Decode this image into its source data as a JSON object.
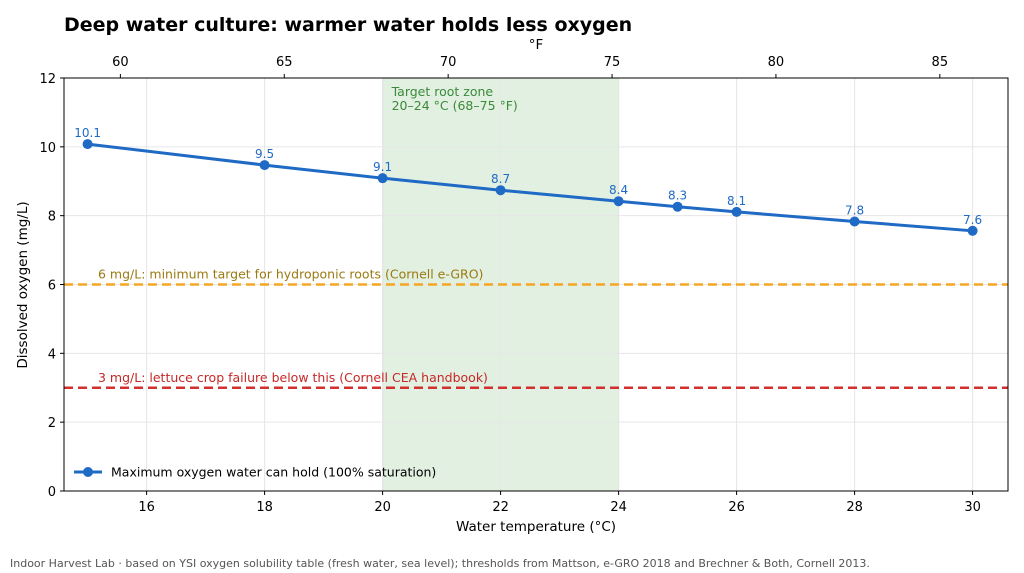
{
  "chart_data": {
    "type": "line",
    "title": "Deep water culture: warmer water holds less oxygen",
    "xlabel": "Water temperature (°C)",
    "ylabel": "Dissolved oxygen (mg/L)",
    "secondary_xlabel": "°F",
    "xlim": [
      14.6,
      30.6
    ],
    "ylim": [
      0,
      12
    ],
    "x_ticks": [
      "16",
      "18",
      "20",
      "22",
      "24",
      "26",
      "28",
      "30"
    ],
    "y_ticks": [
      "0",
      "2",
      "4",
      "6",
      "8",
      "10",
      "12"
    ],
    "secondary_x_ticks": [
      "60",
      "65",
      "70",
      "75",
      "80",
      "85"
    ],
    "grid": true,
    "legend_placement": "lower-left",
    "series": [
      {
        "name": "Maximum oxygen water can hold (100% saturation)",
        "color": "#1f6ac4",
        "x": [
          15,
          18,
          20,
          22,
          24,
          25,
          26,
          28,
          30
        ],
        "values": [
          10.08,
          9.47,
          9.09,
          8.74,
          8.42,
          8.26,
          8.11,
          7.83,
          7.56
        ],
        "labels": [
          "10.1",
          "9.5",
          "9.1",
          "8.7",
          "8.4",
          "8.3",
          "8.1",
          "7.8",
          "7.6"
        ]
      }
    ],
    "shaded_region": {
      "x_range": [
        20,
        24
      ],
      "color": "#e2f0e1",
      "label_line1": "Target root zone",
      "label_line2": "20–24 °C (68–75 °F)",
      "label_color": "#3a8a3a"
    },
    "reference_lines": [
      {
        "y": 6,
        "color": "#f5a623",
        "label": "6 mg/L: minimum target for hydroponic roots (Cornell e-GRO)",
        "label_color": "#9a7a12"
      },
      {
        "y": 3,
        "color": "#d32f2f",
        "label": "3 mg/L: lettuce crop failure below this (Cornell CEA handbook)",
        "label_color": "#c62828"
      }
    ],
    "footer": "Indoor Harvest Lab · based on YSI oxygen solubility table (fresh water, sea level); thresholds from Mattson, e-GRO 2018 and Brechner & Both, Cornell 2013."
  }
}
